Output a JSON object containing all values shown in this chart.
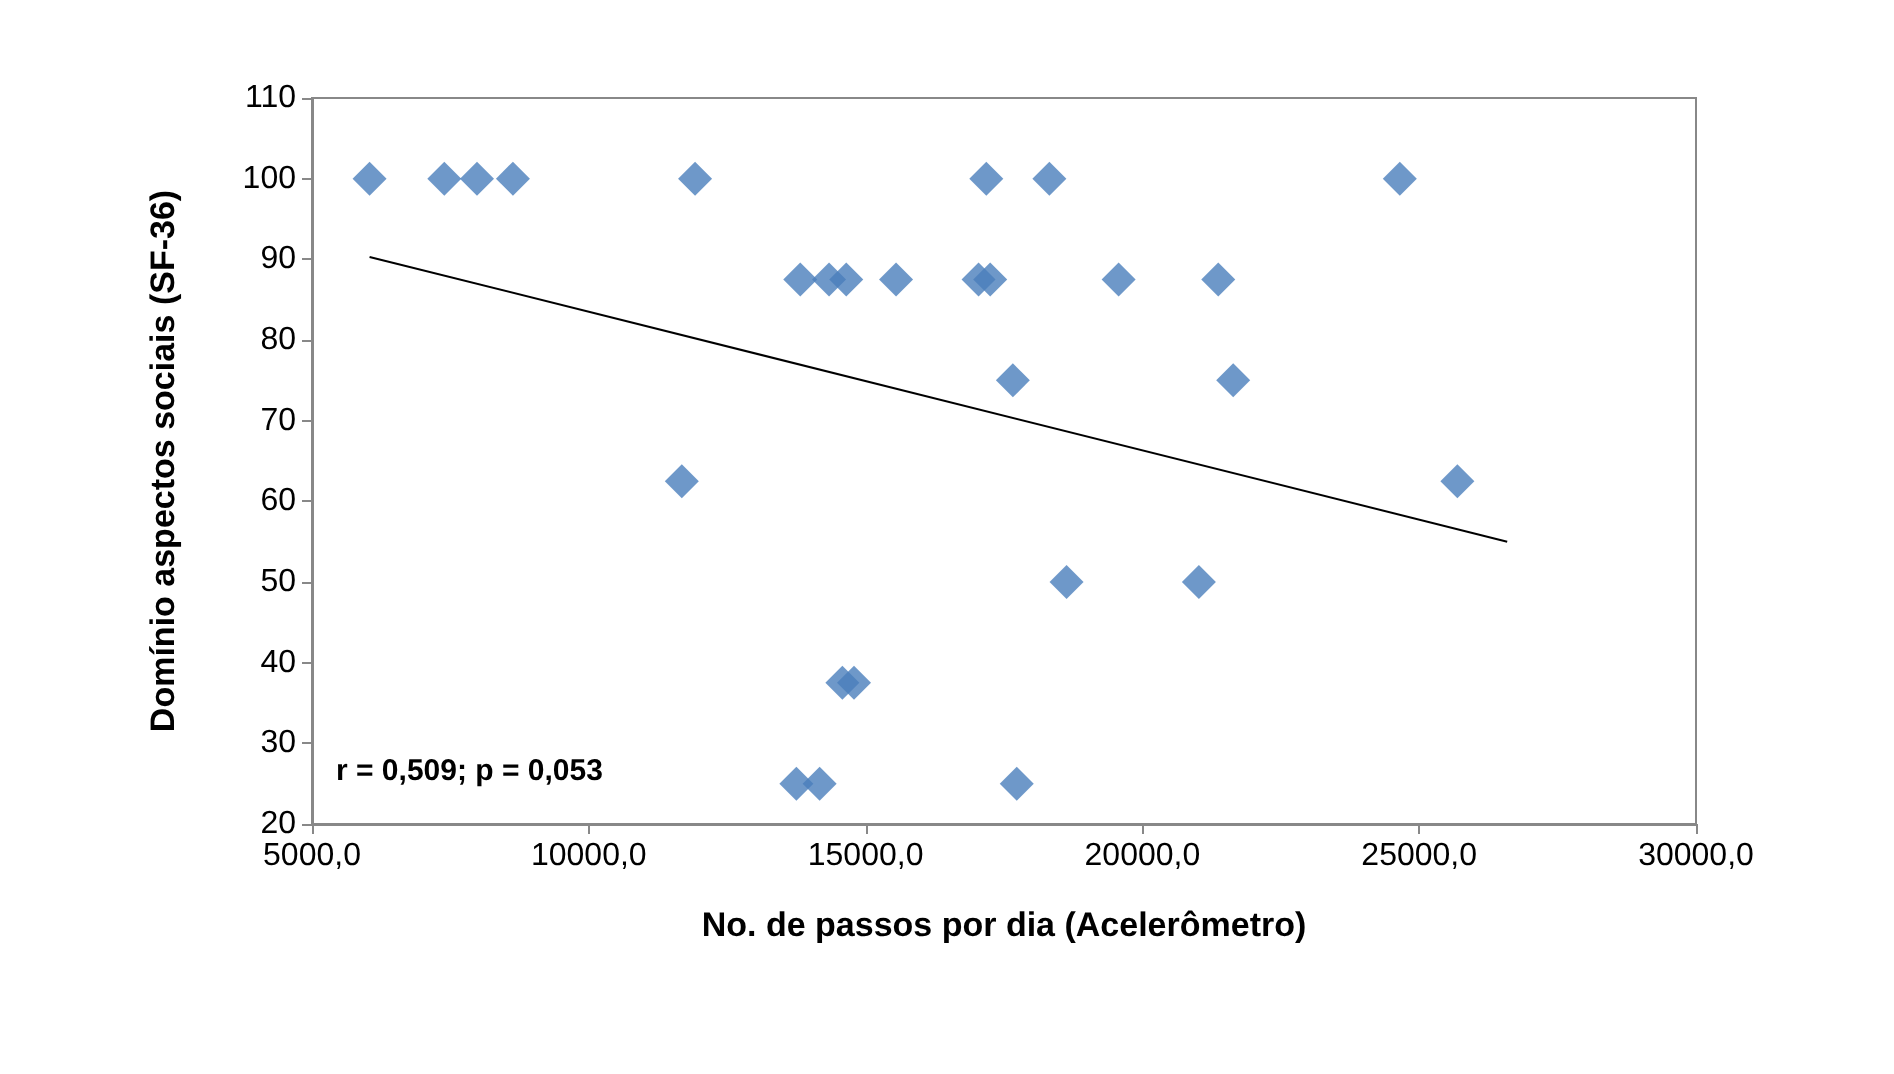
{
  "chart_data": {
    "type": "scatter",
    "xlabel": "No. de passos por dia (Acelerômetro)",
    "ylabel": "Domínio aspectos sociais (SF-36)",
    "marker": "diamond",
    "grid": false,
    "xlim": [
      5000,
      30000
    ],
    "xticks": [
      {
        "value": 5000,
        "label": "5000,0"
      },
      {
        "value": 10000,
        "label": "10000,0"
      },
      {
        "value": 15000,
        "label": "15000,0"
      },
      {
        "value": 20000,
        "label": "20000,0"
      },
      {
        "value": 25000,
        "label": "25000,0"
      },
      {
        "value": 30000,
        "label": "30000,0"
      }
    ],
    "ylim": [
      20,
      110
    ],
    "yticks": [
      20,
      30,
      40,
      50,
      60,
      70,
      80,
      90,
      100,
      110
    ],
    "annotations": [
      "r = 0,509; p = 0,053"
    ],
    "series": [
      {
        "color": "#4a7ebb",
        "x": [
          6040,
          7390,
          7980,
          8630,
          11920,
          17180,
          18320,
          24650,
          13820,
          14340,
          14650,
          15550,
          17040,
          17250,
          19570,
          21370,
          17660,
          21640,
          11680,
          25690,
          18630,
          21020,
          14580,
          14790,
          13750,
          14170,
          17730
        ],
        "values": [
          100,
          100,
          100,
          100,
          100,
          100,
          100,
          100,
          87.5,
          87.5,
          87.5,
          87.5,
          87.5,
          87.5,
          87.5,
          87.5,
          75,
          75,
          62.5,
          62.5,
          50,
          50,
          37.5,
          37.5,
          25,
          25,
          25
        ]
      },
      {
        "type": "line",
        "color": "#000000",
        "marker": "none",
        "x": [
          6040,
          26590
        ],
        "values": [
          90.3,
          55
        ]
      }
    ]
  }
}
